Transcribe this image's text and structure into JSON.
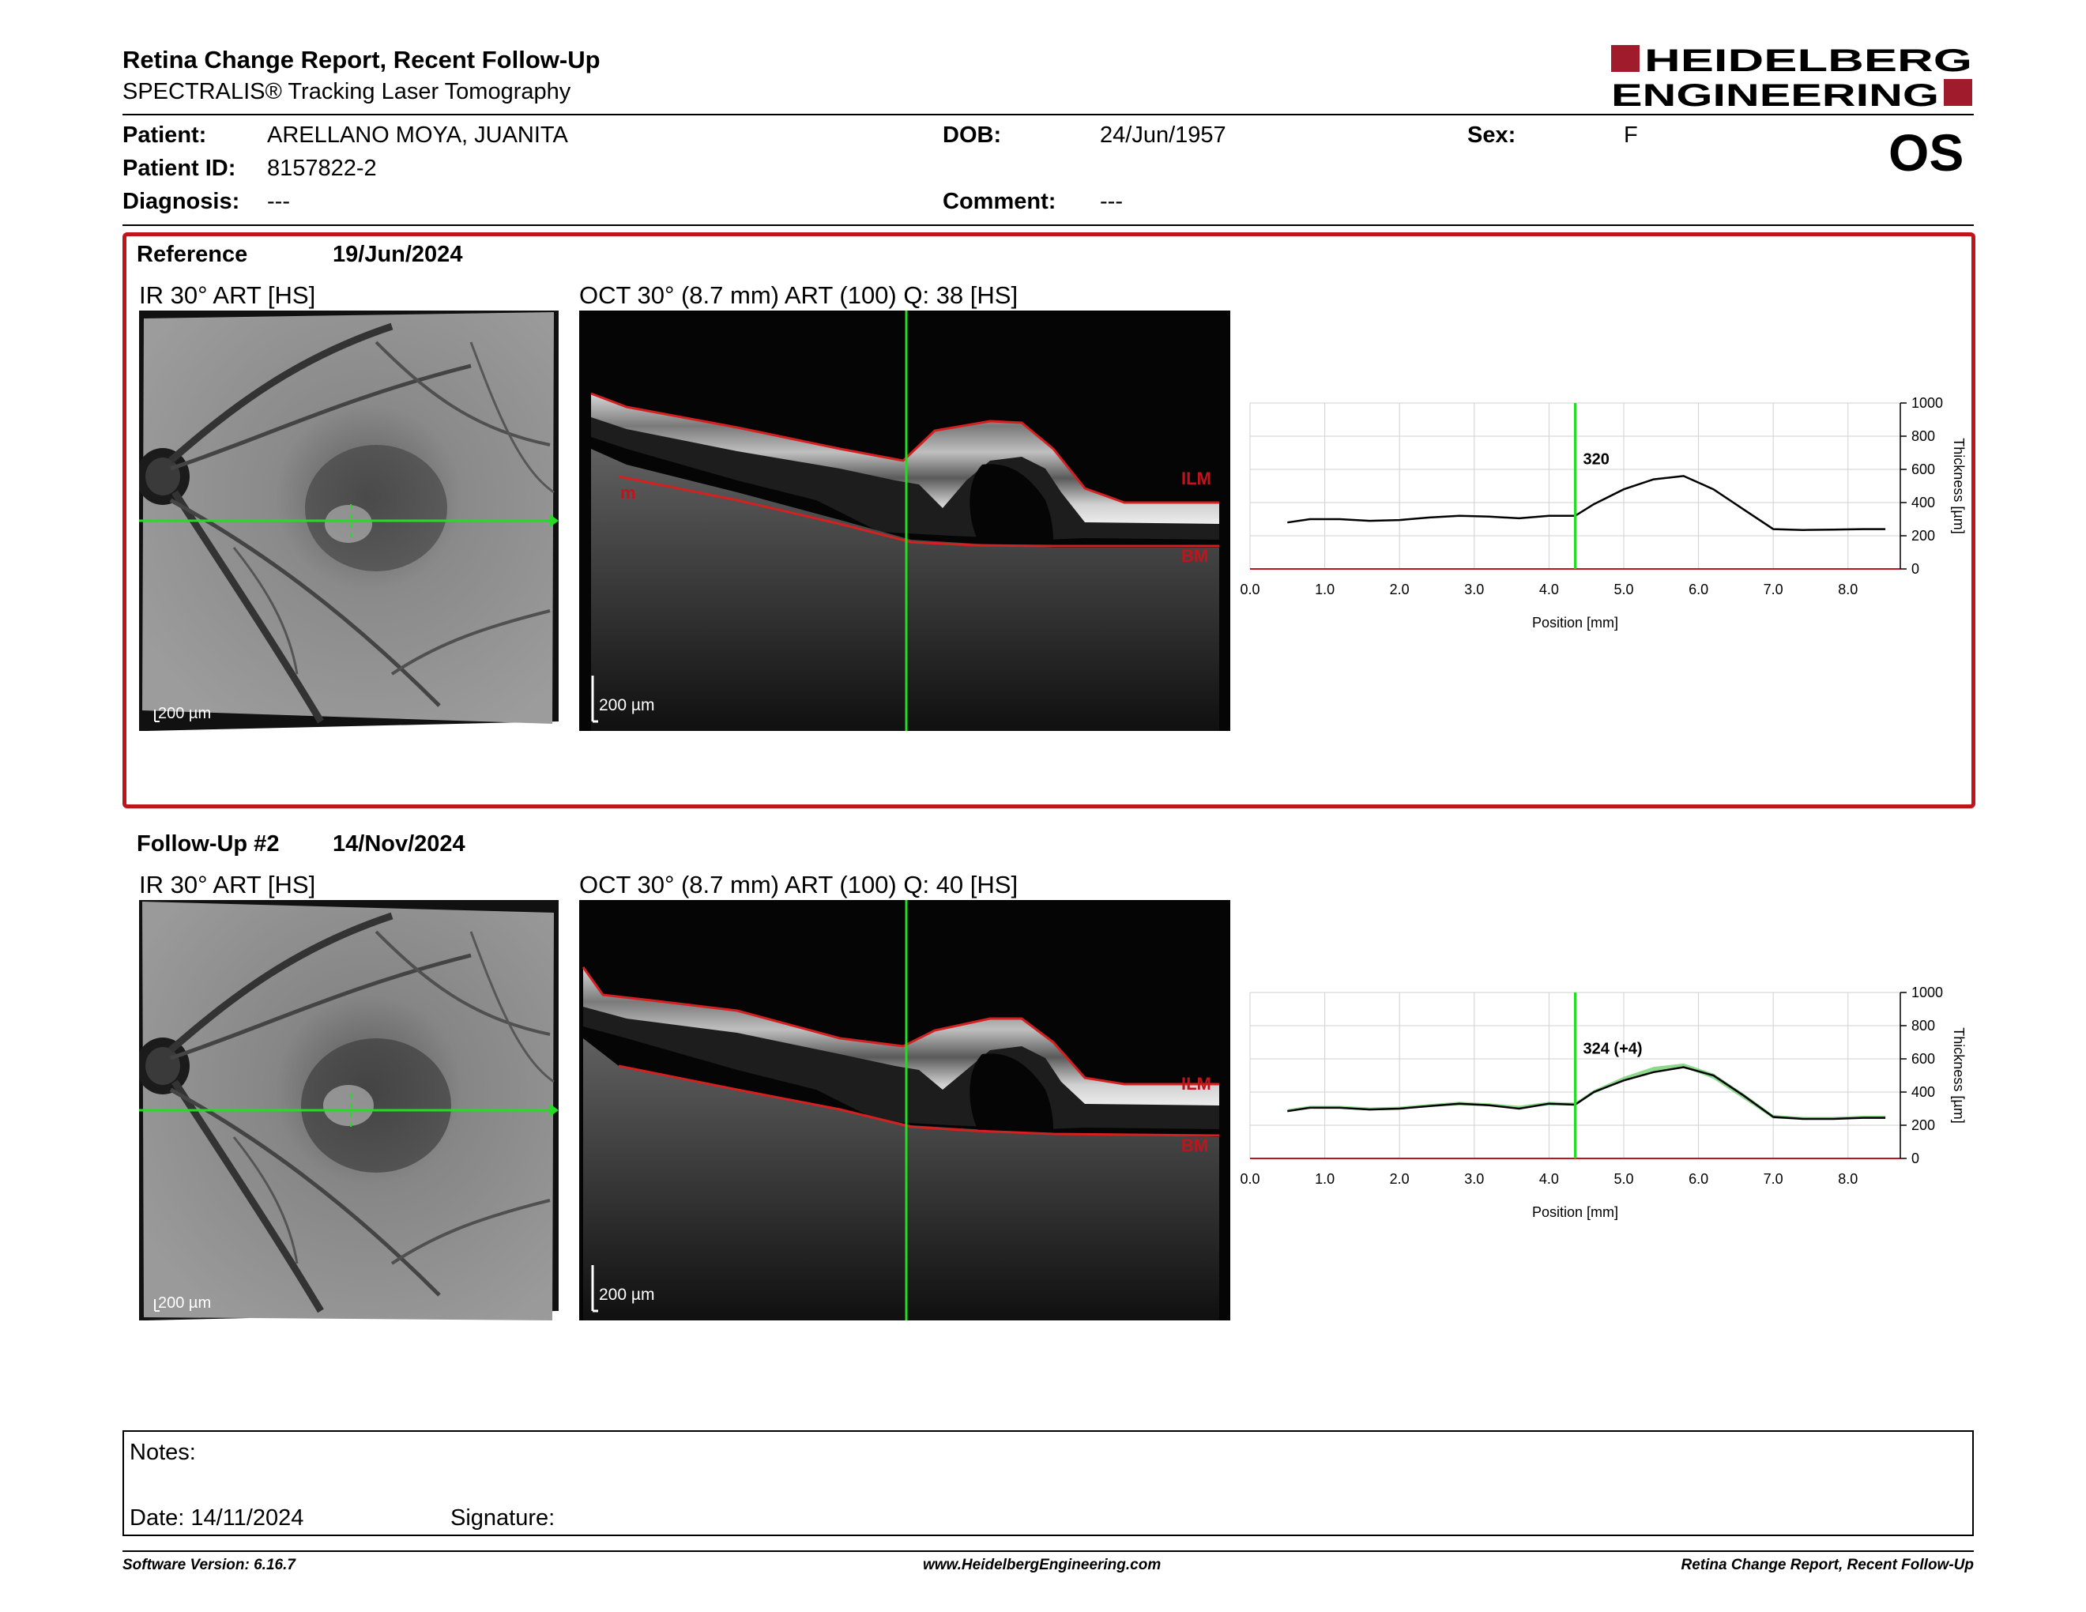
{
  "header": {
    "title": "Retina Change Report, Recent Follow-Up",
    "subtitle": "SPECTRALIS® Tracking Laser Tomography",
    "logo_line1": "HEIDELBERG",
    "logo_line2": "ENGINEERING",
    "eye": "OS"
  },
  "patient": {
    "patient_label": "Patient:",
    "patient_value": "ARELLANO MOYA, JUANITA",
    "dob_label": "DOB:",
    "dob_value": "24/Jun/1957",
    "sex_label": "Sex:",
    "sex_value": "F",
    "id_label": "Patient ID:",
    "id_value": "8157822-2",
    "diagnosis_label": "Diagnosis:",
    "diagnosis_value": "---",
    "comment_label": "Comment:",
    "comment_value": "---"
  },
  "reference": {
    "label": "Reference",
    "date": "19/Jun/2024",
    "ir_title": "IR 30° ART [HS]",
    "oct_title": "OCT 30° (8.7 mm) ART (100) Q: 38 [HS]",
    "scale": "200 µm",
    "ilm_label": "ILM",
    "bm_label": "BM",
    "m_label": "m",
    "marker_value": "320"
  },
  "followup": {
    "label": "Follow-Up #2",
    "date": "14/Nov/2024",
    "ir_title": "IR 30° ART [HS]",
    "oct_title": "OCT 30° (8.7 mm) ART (100) Q: 40 [HS]",
    "scale": "200 µm",
    "ilm_label": "ILM",
    "bm_label": "BM",
    "marker_value": "324 (+4)"
  },
  "chart_data": [
    {
      "type": "line",
      "title": "",
      "xlabel": "Position [mm]",
      "ylabel": "Thickness [µm]",
      "xlim": [
        0,
        8.7
      ],
      "ylim": [
        0,
        1000
      ],
      "x_ticks": [
        "0.0",
        "1.0",
        "2.0",
        "3.0",
        "4.0",
        "5.0",
        "6.0",
        "7.0",
        "8.0"
      ],
      "y_ticks": [
        "0",
        "200",
        "400",
        "600",
        "800",
        "1000"
      ],
      "marker_x": 4.35,
      "marker_label": "320",
      "series": [
        {
          "x": [
            0.5,
            0.8,
            1.2,
            1.6,
            2.0,
            2.4,
            2.8,
            3.2,
            3.6,
            4.0,
            4.35,
            4.6,
            5.0,
            5.4,
            5.8,
            6.2,
            6.6,
            7.0,
            7.4,
            7.8,
            8.2,
            8.5
          ],
          "values": [
            280,
            300,
            300,
            290,
            295,
            310,
            320,
            315,
            305,
            320,
            320,
            390,
            480,
            540,
            560,
            480,
            360,
            240,
            235,
            237,
            240,
            240
          ]
        }
      ],
      "grid": true
    },
    {
      "type": "line",
      "title": "",
      "xlabel": "Position [mm]",
      "ylabel": "Thickness [µm]",
      "xlim": [
        0,
        8.7
      ],
      "ylim": [
        0,
        1000
      ],
      "x_ticks": [
        "0.0",
        "1.0",
        "2.0",
        "3.0",
        "4.0",
        "5.0",
        "6.0",
        "7.0",
        "8.0"
      ],
      "y_ticks": [
        "0",
        "200",
        "400",
        "600",
        "800",
        "1000"
      ],
      "marker_x": 4.35,
      "marker_label": "324 (+4)",
      "series": [
        {
          "x": [
            0.5,
            0.8,
            1.2,
            1.6,
            2.0,
            2.4,
            2.8,
            3.2,
            3.6,
            4.0,
            4.35,
            4.6,
            5.0,
            5.4,
            5.8,
            6.2,
            6.6,
            7.0,
            7.4,
            7.8,
            8.2,
            8.5
          ],
          "values": [
            285,
            305,
            305,
            295,
            300,
            315,
            330,
            320,
            300,
            330,
            324,
            400,
            470,
            520,
            550,
            500,
            380,
            250,
            238,
            238,
            245,
            245
          ]
        }
      ],
      "grid": true
    }
  ],
  "notes": {
    "notes_label": "Notes:",
    "date_label": "Date: 14/11/2024",
    "signature_label": "Signature:"
  },
  "footer": {
    "left": "Software Version: 6.16.7",
    "center": "www.HeidelbergEngineering.com",
    "right": "Retina Change Report, Recent Follow-Up"
  },
  "colors": {
    "brand_red": "#a01c2c",
    "frame_red": "#c0141c",
    "scan_green": "#22dd22",
    "layer_red": "#d42020",
    "diff_green": "#66cc66"
  }
}
